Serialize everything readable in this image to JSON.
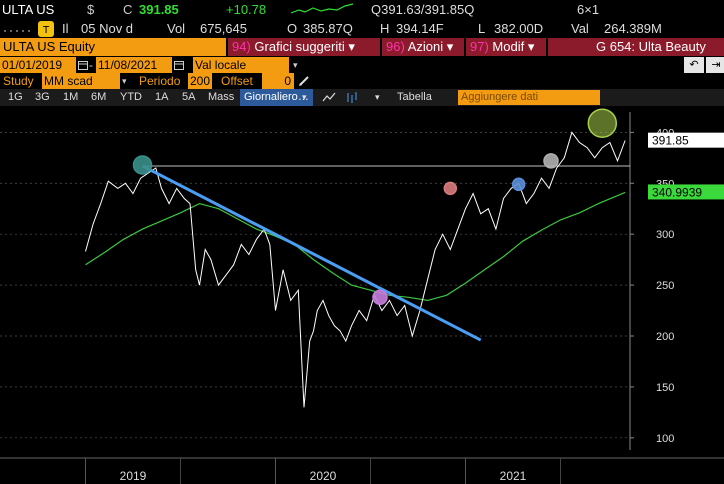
{
  "header": {
    "ticker": "ULTA US",
    "currency": "$",
    "close_label": "C",
    "close": "391.85",
    "change": "+10.78",
    "bid_ask": "Q391.63/391.85Q",
    "size": "6×1",
    "date_prefix": "Il",
    "date": "05 Nov d",
    "vol_label": "Vol",
    "volume": "675,645",
    "open_label": "O",
    "open": "385.87Q",
    "high_label": "H",
    "high": "394.14F",
    "low_label": "L",
    "low": "382.00D",
    "val_label": "Val",
    "value": "264.389M"
  },
  "command_bar": {
    "security": "ULTA US Equity",
    "buttons": [
      {
        "num": "94)",
        "label": "Grafici suggeriti ▾"
      },
      {
        "num": "96)",
        "label": "Azioni ▾"
      },
      {
        "num": "97)",
        "label": "Modif ▾"
      }
    ],
    "title": "G 654: Ulta Beauty"
  },
  "settings": {
    "start_date": "01/01/2019",
    "end_date": "11/08/2021",
    "currency_mode": "Val locale",
    "back_icon": "undo-icon",
    "forward_icon": "redo-icon"
  },
  "study": {
    "label": "Study",
    "study_value": "MM scad",
    "period_label": "Periodo",
    "period": "200",
    "offset_label": "Offset",
    "offset": "0"
  },
  "toolbar": {
    "ranges": [
      "1G",
      "3G",
      "1M",
      "6M",
      "YTD",
      "1A",
      "5A",
      "Mass"
    ],
    "frequency": "Giornaliero",
    "table_label": "Tabella",
    "add_data_placeholder": "Aggiungere dati"
  },
  "chart_data": {
    "type": "line",
    "x_labels": [
      "2019",
      "2020",
      "2021"
    ],
    "ylim": [
      90,
      420
    ],
    "y_ticks": [
      100,
      150,
      200,
      250,
      300,
      350,
      400
    ],
    "last_price_label": "391.85",
    "ma_label": "340.9939",
    "colors": {
      "price": "#ffffff",
      "ma": "#3cc83c",
      "trendline": "#4a9ff5",
      "last_price_bg": "#ffffff",
      "ma_bg": "#3cd93c",
      "marker_teal": "#3a8f8a",
      "marker_purple": "#c77ddb",
      "marker_red": "#d97b7b",
      "marker_blue": "#5b8fd9",
      "marker_gray": "#b0b0b0",
      "marker_green": "#a8d04a"
    },
    "series": [
      {
        "name": "",
        "x": [
          2019.0,
          2019.04,
          2019.08,
          2019.12,
          2019.17,
          2019.21,
          2019.25,
          2019.29,
          2019.33,
          2019.37,
          2019.4,
          2019.44,
          2019.48,
          2019.52,
          2019.55,
          2019.58,
          2019.6,
          2019.63,
          2019.66,
          2019.7,
          2019.74,
          2019.78,
          2019.82,
          2019.86,
          2019.9,
          2019.94,
          2019.97,
          2020.0,
          2020.04,
          2020.08,
          2020.12,
          2020.15,
          2020.18,
          2020.2,
          2020.22,
          2020.25,
          2020.28,
          2020.31,
          2020.34,
          2020.37,
          2020.4,
          2020.44,
          2020.48,
          2020.52,
          2020.56,
          2020.6,
          2020.64,
          2020.68,
          2020.72,
          2020.76,
          2020.8,
          2020.84,
          2020.88,
          2020.92,
          2020.96,
          2021.0,
          2021.04,
          2021.08,
          2021.12,
          2021.16,
          2021.2,
          2021.24,
          2021.28,
          2021.32,
          2021.36,
          2021.4,
          2021.44,
          2021.48,
          2021.52,
          2021.56,
          2021.6,
          2021.64,
          2021.68,
          2021.72,
          2021.76,
          2021.8,
          2021.84
        ],
        "values": [
          283,
          310,
          330,
          352,
          345,
          350,
          340,
          355,
          360,
          365,
          345,
          330,
          345,
          335,
          330,
          265,
          250,
          285,
          275,
          250,
          260,
          270,
          290,
          280,
          295,
          305,
          290,
          225,
          265,
          235,
          245,
          130,
          195,
          205,
          225,
          235,
          220,
          210,
          205,
          195,
          210,
          225,
          215,
          240,
          225,
          235,
          220,
          230,
          200,
          225,
          255,
          285,
          300,
          285,
          305,
          325,
          340,
          320,
          325,
          305,
          335,
          345,
          350,
          330,
          340,
          355,
          345,
          365,
          375,
          400,
          390,
          385,
          375,
          385,
          390,
          372,
          392
        ]
      },
      {
        "name": "",
        "x": [
          2019.0,
          2019.1,
          2019.2,
          2019.3,
          2019.4,
          2019.5,
          2019.6,
          2019.7,
          2019.8,
          2019.9,
          2020.0,
          2020.1,
          2020.2,
          2020.3,
          2020.4,
          2020.5,
          2020.6,
          2020.7,
          2020.8,
          2020.9,
          2021.0,
          2021.1,
          2021.2,
          2021.3,
          2021.4,
          2021.5,
          2021.6,
          2021.7,
          2021.84
        ],
        "values": [
          270,
          282,
          295,
          305,
          313,
          321,
          330,
          325,
          315,
          305,
          298,
          290,
          275,
          262,
          250,
          245,
          240,
          238,
          235,
          240,
          252,
          265,
          278,
          293,
          304,
          314,
          321,
          330,
          341
        ]
      }
    ],
    "trendline": {
      "x": [
        2019.3,
        2021.08
      ],
      "values": [
        367,
        196
      ]
    },
    "horizontal_level": {
      "from_x": 2019.3,
      "value": 367
    },
    "markers": [
      {
        "x": 2019.3,
        "value": 368,
        "kind": "teal"
      },
      {
        "x": 2020.55,
        "value": 238,
        "kind": "purple"
      },
      {
        "x": 2020.92,
        "value": 345,
        "kind": "red"
      },
      {
        "x": 2021.28,
        "value": 349,
        "kind": "blue"
      },
      {
        "x": 2021.45,
        "value": 372,
        "kind": "gray"
      },
      {
        "x": 2021.72,
        "value": 409,
        "kind": "green"
      }
    ]
  }
}
